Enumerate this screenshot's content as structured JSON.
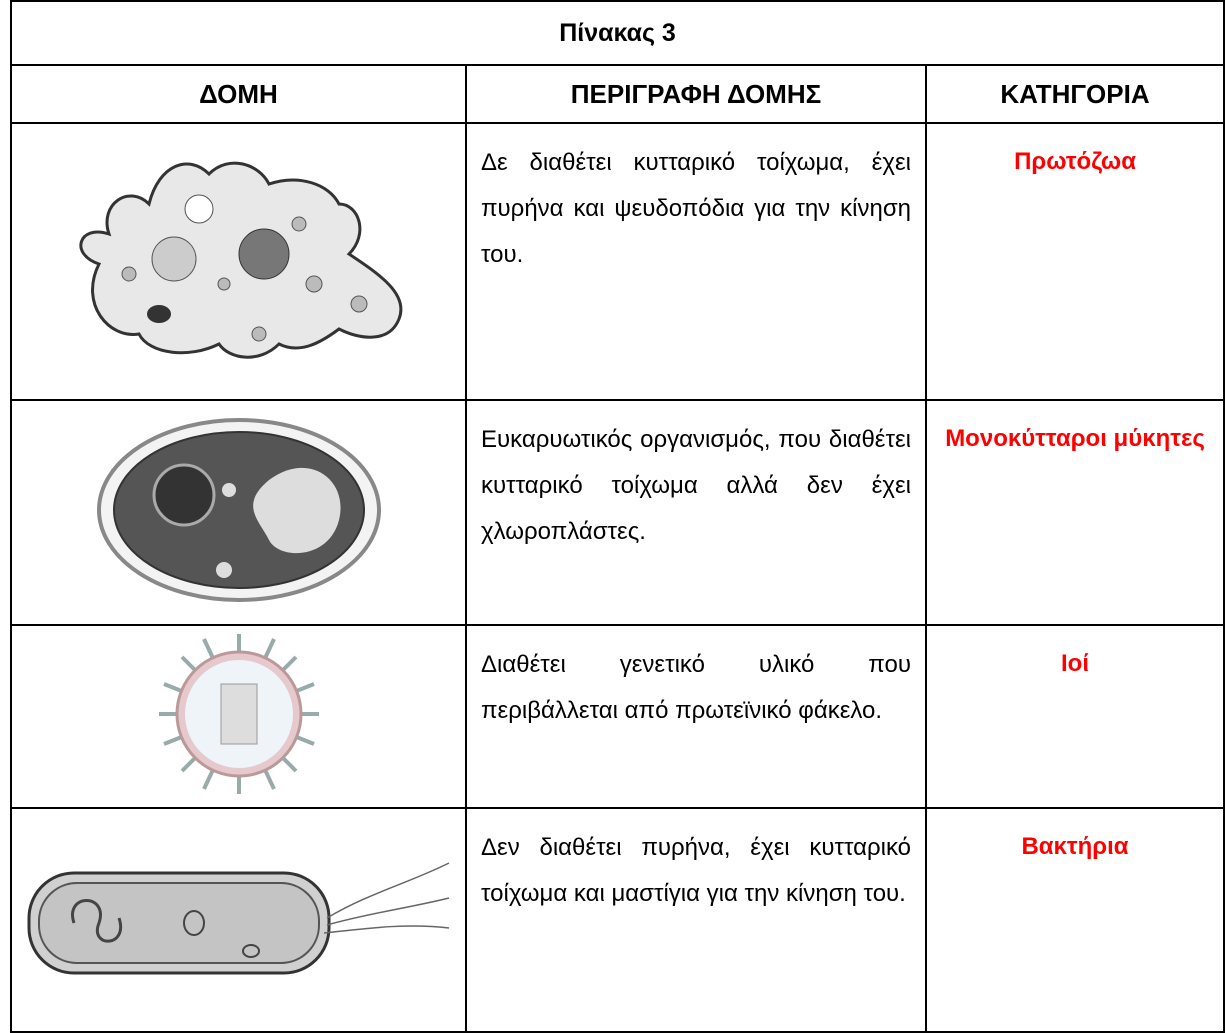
{
  "table": {
    "title": "Πίνακας 3",
    "headers": [
      "ΔΟΜΗ",
      "ΠΕΡΙΓΡΑΦΗ ΔΟΜΗΣ",
      "ΚΑΤΗΓΟΡΙΑ"
    ],
    "rows": [
      {
        "description": "Δε διαθέτει κυτταρικό τοίχωμα, έχει πυρήνα και ψευδοπόδια για την κίνηση του.",
        "category": "Πρωτόζωα"
      },
      {
        "description": "Ευκαρυωτικός οργανισμός, που διαθέτει κυτταρικό τοίχωμα αλλά δεν έχει χλωροπλάστες.",
        "category": "Μονοκύτταροι μύκητες"
      },
      {
        "description": "Διαθέτει γενετικό υλικό που περιβάλλεται από πρωτεϊνικό φάκελο.",
        "category": "Ιοί"
      },
      {
        "description": "Δεν διαθέτει πυρήνα, έχει κυτταρικό τοίχωμα και μαστίγια για την κίνηση του.",
        "category": "Βακτήρια"
      }
    ]
  }
}
